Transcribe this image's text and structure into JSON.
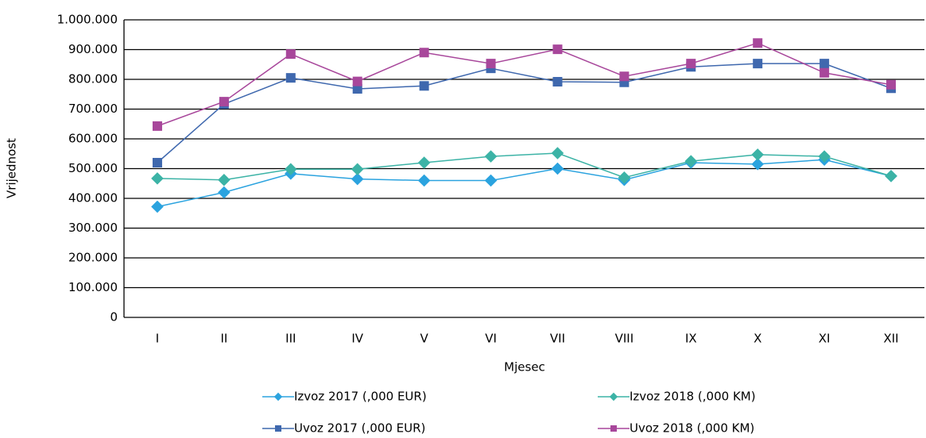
{
  "chart_data": {
    "type": "line",
    "x_label": "Mjesec",
    "y_label": "Vrijednost",
    "categories": [
      "I",
      "II",
      "III",
      "IV",
      "V",
      "VI",
      "VII",
      "VIII",
      "IX",
      "X",
      "XI",
      "XII"
    ],
    "series": [
      {
        "name": "Izvoz 2017 (,000 EUR)",
        "color": "#2ba3df",
        "marker": "diamond",
        "values": [
          372000,
          420000,
          483000,
          465000,
          460000,
          460000,
          500000,
          462000,
          520000,
          515000,
          530000,
          475000
        ]
      },
      {
        "name": "Izvoz 2018 (,000 KM)",
        "color": "#3cb3a6",
        "marker": "diamond",
        "values": [
          467000,
          462000,
          498000,
          498000,
          520000,
          541000,
          552000,
          470000,
          525000,
          547000,
          541000,
          475000
        ]
      },
      {
        "name": "Uvoz 2017 (,000 EUR)",
        "color": "#3f68ae",
        "marker": "square",
        "values": [
          520000,
          717000,
          805000,
          768000,
          778000,
          837000,
          792000,
          790000,
          842000,
          853000,
          853000,
          770000
        ]
      },
      {
        "name": "Uvoz 2018 (,000 KM)",
        "color": "#a8479b",
        "marker": "square",
        "values": [
          643000,
          725000,
          885000,
          793000,
          890000,
          853000,
          901000,
          810000,
          853000,
          922000,
          822000,
          782000
        ]
      }
    ],
    "ylim": [
      0,
      1000000
    ],
    "yticks": [
      0,
      {
        "value": 100000,
        "label": "100.000"
      },
      {
        "value": 200000,
        "label": "200.000"
      },
      {
        "value": 300000,
        "label": "300.000"
      },
      {
        "value": 400000,
        "label": "400.000"
      },
      {
        "value": 500000,
        "label": "500.000"
      },
      {
        "value": 600000,
        "label": "600.000"
      },
      {
        "value": 700000,
        "label": "700.000"
      },
      {
        "value": 800000,
        "label": "800.000"
      },
      {
        "value": 900000,
        "label": "900.000"
      },
      {
        "value": 1000000,
        "label": "1.000.000"
      }
    ],
    "grid": true,
    "legend": "bottom"
  }
}
